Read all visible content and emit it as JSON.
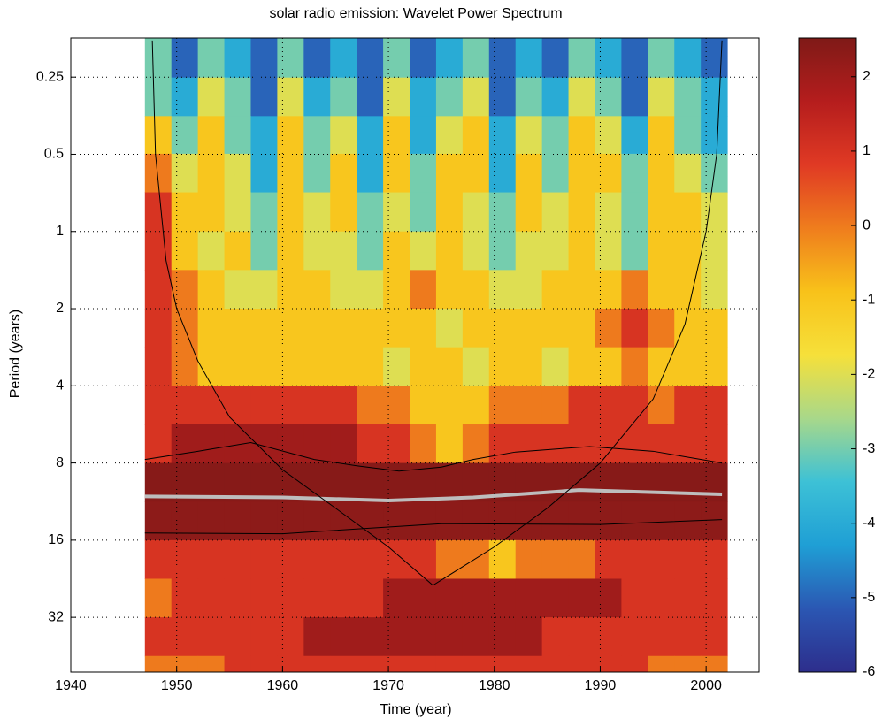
{
  "chart_data": {
    "type": "heatmap",
    "title": "solar radio emission: Wavelet Power Spectrum",
    "xlabel": "Time (year)",
    "ylabel": "Period (years)",
    "xlim": [
      1940,
      2005
    ],
    "xticks": [
      1940,
      1950,
      1960,
      1970,
      1980,
      1990,
      2000
    ],
    "ylim": [
      0.176,
      52.3
    ],
    "y_log2": true,
    "y_reversed": true,
    "yticks": [
      0.25,
      0.5,
      1,
      2,
      4,
      8,
      16,
      32
    ],
    "grid": true,
    "clim": [
      -6,
      2.52
    ],
    "cticks": [
      2,
      1,
      0,
      -1,
      -2,
      -3,
      -4,
      -5,
      -6
    ],
    "colormap": [
      "#2d2e8c",
      "#2b57b3",
      "#1f9fd5",
      "#3dc1d6",
      "#a8d88a",
      "#f6e03a",
      "#f8c21a",
      "#ef7d1d",
      "#e03a24",
      "#b51d1d",
      "#7f1a17"
    ],
    "times": [
      1948.25,
      1950.75,
      1953.25,
      1955.75,
      1958.25,
      1960.75,
      1963.25,
      1965.75,
      1968.25,
      1970.75,
      1973.25,
      1975.75,
      1978.25,
      1980.75,
      1983.25,
      1985.75,
      1988.25,
      1990.75,
      1993.25,
      1995.75,
      1998.25,
      2000.75
    ],
    "periods": [
      0.21,
      0.3,
      0.42,
      0.59,
      0.84,
      1.19,
      1.68,
      2.38,
      3.36,
      4.76,
      6.73,
      9.51,
      13.45,
      19.03,
      26.9,
      38.05,
      53.8
    ],
    "values": [
      [
        -3,
        -5,
        -3,
        -4,
        -5,
        -3,
        -5,
        -4,
        -5,
        -3,
        -5,
        -4,
        -3,
        -5,
        -4,
        -5,
        -3,
        -4,
        -5,
        -3,
        -4,
        -5
      ],
      [
        -3,
        -4,
        -2,
        -3,
        -5,
        -2,
        -4,
        -3,
        -5,
        -2,
        -4,
        -3,
        -2,
        -5,
        -3,
        -4,
        -2,
        -3,
        -5,
        -2,
        -3,
        -4
      ],
      [
        -1,
        -3,
        -1,
        -3,
        -4,
        -1,
        -3,
        -2,
        -4,
        -1,
        -4,
        -2,
        -1,
        -4,
        -2,
        -3,
        -1,
        -2,
        -4,
        -1,
        -3,
        -4
      ],
      [
        0,
        -2,
        -1,
        -2,
        -4,
        -1,
        -3,
        -1,
        -4,
        -1,
        -3,
        -1,
        -1,
        -4,
        -1,
        -3,
        -1,
        -1,
        -3,
        -1,
        -2,
        -3
      ],
      [
        1,
        -1,
        -1,
        -2,
        -3,
        -1,
        -2,
        -1,
        -3,
        -2,
        -3,
        -1,
        -2,
        -3,
        -1,
        -2,
        -1,
        -2,
        -3,
        -1,
        -1,
        -2
      ],
      [
        1,
        -1,
        -2,
        -1,
        -3,
        -1,
        -2,
        -2,
        -3,
        -1,
        -2,
        -1,
        -2,
        -3,
        -2,
        -2,
        -1,
        -2,
        -3,
        -1,
        -1,
        -2
      ],
      [
        1,
        0,
        -1,
        -2,
        -2,
        -1,
        -1,
        -2,
        -2,
        -1,
        0,
        -1,
        -1,
        -2,
        -2,
        -1,
        -1,
        -1,
        0,
        -1,
        -1,
        -2
      ],
      [
        1,
        0,
        -1,
        -1,
        -1,
        -1,
        -1,
        -1,
        -1,
        -1,
        -1,
        -2,
        -1,
        -1,
        -1,
        -1,
        -1,
        0,
        1,
        0,
        -1,
        -1
      ],
      [
        1,
        0,
        -1,
        -1,
        -1,
        -1,
        -1,
        -1,
        -1,
        -2,
        -1,
        -1,
        -2,
        -1,
        -1,
        -2,
        -1,
        -1,
        0,
        -1,
        -1,
        -1
      ],
      [
        1,
        1,
        1,
        1,
        1,
        1,
        1,
        1,
        0,
        0,
        -1,
        -1,
        -1,
        0,
        0,
        0,
        1,
        1,
        1,
        0,
        1,
        1
      ],
      [
        1,
        2,
        2,
        2,
        2,
        2,
        2,
        2,
        1,
        1,
        0,
        -1,
        0,
        1,
        1,
        1,
        1,
        1,
        1,
        1,
        1,
        1
      ],
      [
        2.4,
        2.4,
        2.4,
        2.4,
        2.4,
        2.4,
        2.4,
        2.4,
        2.4,
        2.4,
        2.4,
        2.4,
        2.4,
        2.4,
        2.4,
        2.4,
        2.4,
        2.4,
        2.4,
        2.4,
        2.4,
        2.4
      ],
      [
        2.3,
        2.3,
        2.3,
        2.3,
        2.3,
        2.3,
        2.3,
        2.3,
        2.3,
        2.3,
        2.3,
        2.3,
        2.3,
        2.3,
        2.3,
        2.3,
        2.3,
        2.3,
        2.3,
        2.3,
        2.3,
        2.3
      ],
      [
        1,
        1,
        1,
        1,
        1,
        1,
        1,
        1,
        1,
        1,
        1,
        0,
        0,
        -1,
        0,
        0,
        0,
        1,
        1,
        1,
        1,
        1
      ],
      [
        0,
        1,
        1,
        1,
        1,
        1,
        1,
        1,
        1,
        2,
        2,
        2,
        2,
        2,
        2,
        2,
        2,
        2,
        1,
        1,
        1,
        1
      ],
      [
        1,
        1,
        1,
        1,
        1,
        1,
        2,
        2,
        2,
        2,
        2,
        2,
        2,
        2,
        2,
        1,
        1,
        1,
        1,
        1,
        1,
        1
      ],
      [
        0,
        0,
        0,
        1,
        1,
        1,
        1,
        1,
        1,
        1,
        1,
        1,
        1,
        1,
        1,
        1,
        1,
        1,
        1,
        0,
        0,
        0
      ]
    ],
    "lines": [
      {
        "color": "#bdbdbd",
        "width": 4,
        "x": [
          1947,
          1960,
          1970,
          1978,
          1988,
          2001.5
        ],
        "y": [
          10.8,
          10.9,
          11.2,
          10.9,
          10.2,
          10.6
        ]
      },
      {
        "color": "#000000",
        "width": 1,
        "x": [
          1947,
          1952,
          1957,
          1963,
          1967,
          1971,
          1975,
          1978,
          1982,
          1989,
          1995,
          2001.5
        ],
        "y": [
          7.75,
          7.2,
          6.66,
          7.75,
          8.2,
          8.6,
          8.3,
          7.75,
          7.25,
          6.9,
          7.2,
          8
        ]
      },
      {
        "color": "#000000",
        "width": 1,
        "x": [
          1947,
          1960,
          1975,
          1990,
          2001.5
        ],
        "y": [
          15.0,
          15.1,
          13.8,
          13.9,
          13.3
        ]
      },
      {
        "color": "#000000",
        "width": 1,
        "x": [
          1947.7,
          1948,
          1949,
          1950,
          1952,
          1955,
          1960,
          1965,
          1970,
          1974.2,
          1980,
          1985,
          1990,
          1995,
          1998,
          2000,
          2001,
          2001.5
        ],
        "y": [
          0.18,
          0.5,
          1.3,
          2,
          3.2,
          5.3,
          8.5,
          12,
          17,
          24,
          17,
          12,
          8,
          4.5,
          2.3,
          1,
          0.5,
          0.18
        ]
      }
    ]
  }
}
